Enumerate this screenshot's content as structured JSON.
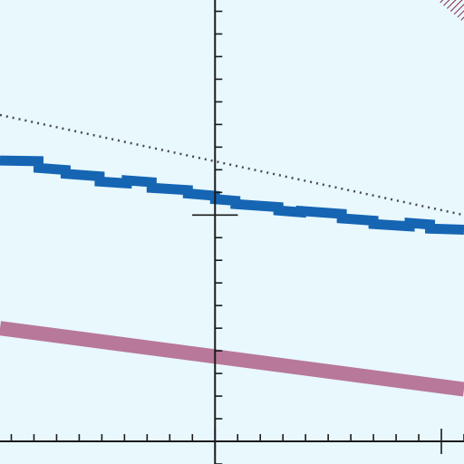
{
  "chart_data": {
    "type": "line",
    "title": "",
    "xlabel": "",
    "ylabel": "",
    "xlim": [
      -0.95,
      1.1
    ],
    "ylim": [
      -1.1,
      0.95
    ],
    "grid": false,
    "axes": {
      "x_origin_y": -1.0,
      "y_origin_x": 0.0,
      "major_tick_step": 1.0,
      "minor_tick_step": 0.1
    },
    "series": [
      {
        "style": "dotted",
        "color": "#4a4a4a",
        "x": [
          -0.95,
          1.1
        ],
        "y": [
          0.442,
          0.0
        ]
      },
      {
        "style": "stepped-thick",
        "color": "#1565b3",
        "points": [
          [
            -0.95,
            0.241
          ],
          [
            -0.78,
            0.238
          ],
          [
            -0.78,
            0.208
          ],
          [
            -0.66,
            0.199
          ],
          [
            -0.66,
            0.182
          ],
          [
            -0.51,
            0.171
          ],
          [
            -0.51,
            0.148
          ],
          [
            -0.39,
            0.14
          ],
          [
            -0.39,
            0.153
          ],
          [
            -0.28,
            0.145
          ],
          [
            -0.28,
            0.12
          ],
          [
            -0.12,
            0.11
          ],
          [
            -0.12,
            0.095
          ],
          [
            0.0,
            0.085
          ],
          [
            0.0,
            0.07
          ],
          [
            0.09,
            0.063
          ],
          [
            0.09,
            0.048
          ],
          [
            0.28,
            0.035
          ],
          [
            0.28,
            0.02
          ],
          [
            0.38,
            0.012
          ],
          [
            0.38,
            0.018
          ],
          [
            0.56,
            0.005
          ],
          [
            0.56,
            -0.015
          ],
          [
            0.7,
            -0.025
          ],
          [
            0.7,
            -0.04
          ],
          [
            0.86,
            -0.05
          ],
          [
            0.86,
            -0.035
          ],
          [
            0.95,
            -0.042
          ],
          [
            0.95,
            -0.06
          ],
          [
            1.1,
            -0.065
          ]
        ]
      },
      {
        "style": "thick",
        "color": "#b8789a",
        "x": [
          -0.95,
          1.1
        ],
        "y": [
          -0.5,
          -0.77
        ]
      },
      {
        "style": "hatched",
        "color": "#8a2b4a",
        "x": [
          0.98,
          1.1
        ],
        "y": [
          0.95,
          0.85
        ]
      }
    ]
  }
}
